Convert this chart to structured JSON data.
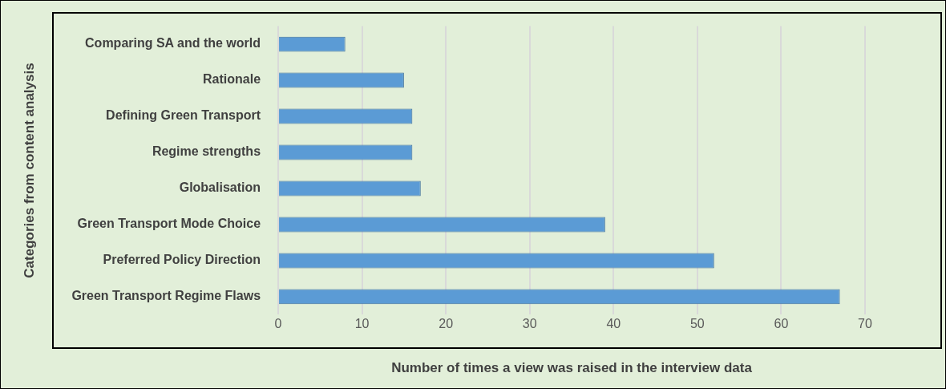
{
  "chart_data": {
    "type": "bar",
    "orientation": "horizontal",
    "xlabel": "Number of times a view was raised in the interview data",
    "ylabel": "Categories from content analysis",
    "categories": [
      "Comparing SA and the world",
      "Rationale",
      "Defining Green Transport",
      "Regime strengths",
      "Globalisation",
      "Green Transport Mode Choice",
      "Preferred Policy Direction",
      "Green Transport Regime Flaws"
    ],
    "values": [
      8,
      15,
      16,
      16,
      17,
      39,
      52,
      67
    ],
    "color": "#5b9bd5",
    "xlim": [
      0,
      70
    ],
    "xticks": [
      0,
      10,
      20,
      30,
      40,
      50,
      60,
      70
    ],
    "grid": "x",
    "legend": false
  }
}
